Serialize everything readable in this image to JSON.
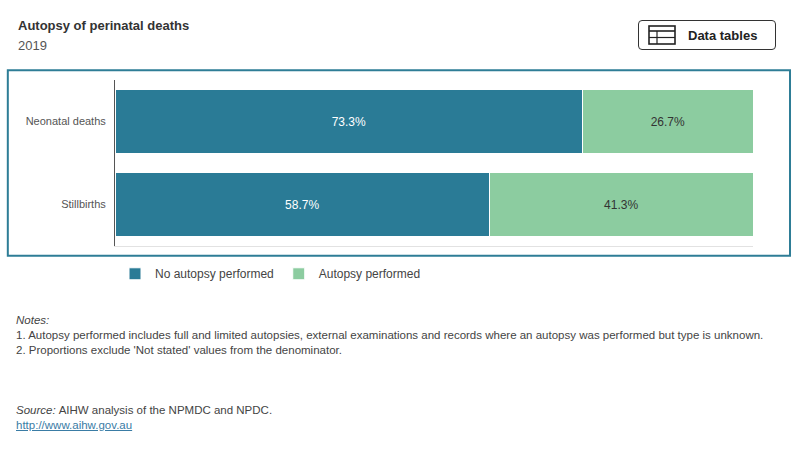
{
  "header": {
    "button": "Data tables"
  },
  "chart_data": {
    "type": "bar",
    "title": "Autopsy of perinatal deaths",
    "subtitle": "2019",
    "orientation": "horizontal",
    "stacked": true,
    "data_labels": true,
    "tick_labels": "y",
    "grid": false,
    "legend": "bottom left",
    "categories": [
      "Neonatal deaths",
      "Stillbirths"
    ],
    "xlim": [
      0,
      100
    ],
    "series": [
      {
        "name": "No autopsy performed",
        "color": "#2a7b96",
        "values": [
          73.3,
          58.7
        ],
        "value_labels": [
          "73.3%",
          "58.7%"
        ]
      },
      {
        "name": "Autopsy performed",
        "color": "#8ccca0",
        "values": [
          26.7,
          41.3
        ],
        "value_labels": [
          "26.7%",
          "41.3%"
        ]
      }
    ]
  },
  "notes": {
    "heading": "Notes:",
    "items": [
      "1. Autopsy performed includes full and limited autopsies, external examinations and records where an autopsy was performed but type is unknown.",
      "2. Proportions exclude 'Not stated' values from the denominator."
    ]
  },
  "source": {
    "label": "Source:",
    "text": "AIHW analysis of the NPMDC and NPDC."
  },
  "url": "http://www.aihw.gov.au"
}
